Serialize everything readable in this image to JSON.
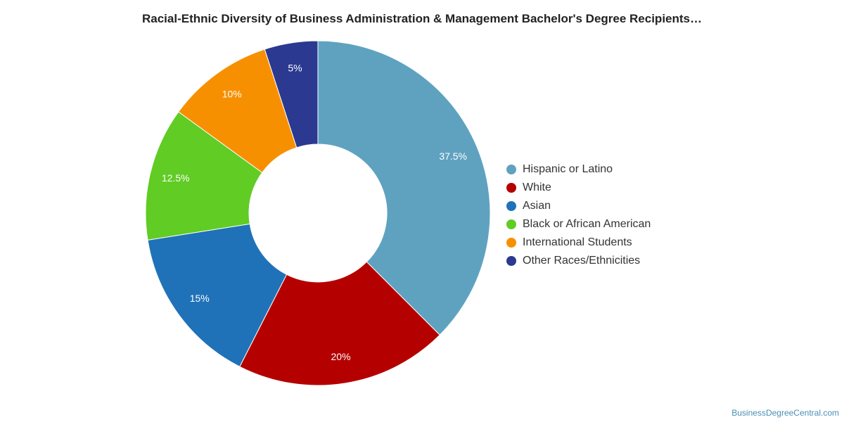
{
  "chart_data": {
    "type": "pie",
    "title": "Racial-Ethnic Diversity of Business Administration & Management Bachelor's Degree Recipients…",
    "donut": true,
    "legend_position": "right",
    "series": [
      {
        "name": "Hispanic or Latino",
        "value": 37.5,
        "label": "37.5%",
        "color": "#5fa2c0"
      },
      {
        "name": "White",
        "value": 20,
        "label": "20%",
        "color": "#b50000"
      },
      {
        "name": "Asian",
        "value": 15,
        "label": "15%",
        "color": "#1f72b8"
      },
      {
        "name": "Black or African American",
        "value": 12.5,
        "label": "12.5%",
        "color": "#60cc24"
      },
      {
        "name": "International Students",
        "value": 10,
        "label": "10%",
        "color": "#f79000"
      },
      {
        "name": "Other Races/Ethnicities",
        "value": 5,
        "label": "5%",
        "color": "#2b3990"
      }
    ]
  },
  "footer": {
    "source": "BusinessDegreeCentral.com"
  }
}
